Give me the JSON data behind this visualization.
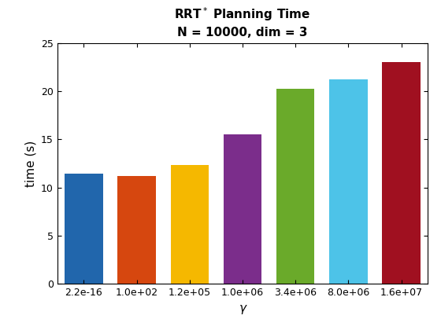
{
  "title_line1": "RRT* Planning Time",
  "title_line2": "N = 10000, dim = 3",
  "xlabel": "γ",
  "ylabel": "time (s)",
  "categories": [
    "2.2e-16",
    "1.0e+02",
    "1.2e+05",
    "1.0e+06",
    "3.4e+06",
    "8.0e+06",
    "1.6e+07"
  ],
  "values": [
    11.4,
    11.2,
    12.3,
    15.5,
    20.2,
    21.2,
    23.0
  ],
  "bar_colors": [
    "#2166ac",
    "#d6470f",
    "#f5b800",
    "#7b2d8b",
    "#6aaa2a",
    "#4dc3e8",
    "#a01020"
  ],
  "ylim": [
    0,
    25
  ],
  "yticks": [
    0,
    5,
    10,
    15,
    20,
    25
  ],
  "background_color": "#ffffff",
  "title_fontsize": 11,
  "axis_label_fontsize": 11,
  "tick_fontsize": 9,
  "bar_width": 0.72
}
